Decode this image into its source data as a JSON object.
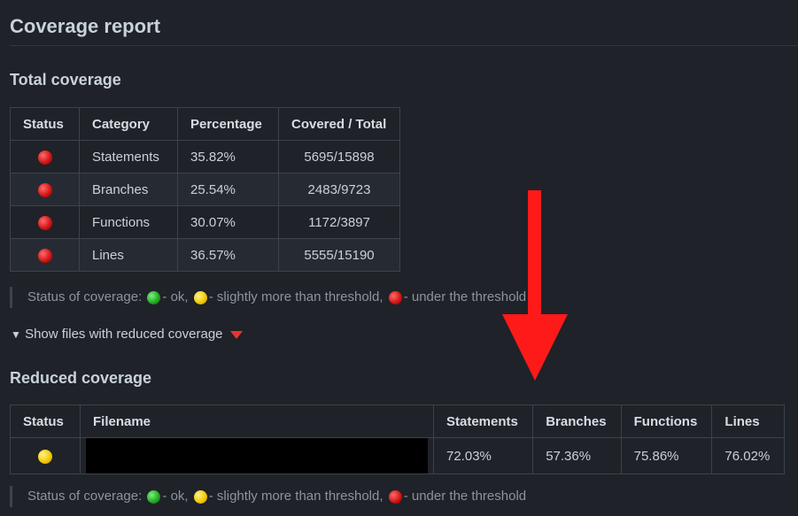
{
  "page": {
    "title": "Coverage report"
  },
  "total": {
    "heading": "Total coverage",
    "columns": [
      "Status",
      "Category",
      "Percentage",
      "Covered / Total"
    ],
    "rows": [
      {
        "status": "red",
        "category": "Statements",
        "percentage": "35.82%",
        "covered": "5695/15898"
      },
      {
        "status": "red",
        "category": "Branches",
        "percentage": "25.54%",
        "covered": "2483/9723"
      },
      {
        "status": "red",
        "category": "Functions",
        "percentage": "30.07%",
        "covered": "1172/3897"
      },
      {
        "status": "red",
        "category": "Lines",
        "percentage": "36.57%",
        "covered": "5555/15190"
      }
    ]
  },
  "legend": {
    "prefix": "Status of coverage: ",
    "ok": "- ok, ",
    "slight": "- slightly more than threshold, ",
    "under": "- under the threshold"
  },
  "details": {
    "marker": "▼",
    "label": "Show files with reduced coverage"
  },
  "reduced": {
    "heading": "Reduced coverage",
    "columns": [
      "Status",
      "Filename",
      "Statements",
      "Branches",
      "Functions",
      "Lines"
    ],
    "rows": [
      {
        "status": "yellow",
        "filename": "",
        "statements": "72.03%",
        "branches": "57.36%",
        "functions": "75.86%",
        "lines": "76.02%"
      }
    ]
  },
  "colors": {
    "background": "#1f2228",
    "arrow": "#ff1a1a",
    "status_red": "#d11010",
    "status_yellow": "#f2c600",
    "status_green": "#1fa51f"
  }
}
